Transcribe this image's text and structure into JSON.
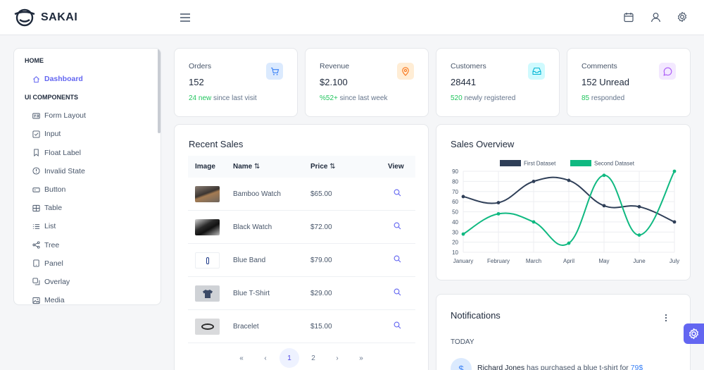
{
  "app": {
    "name": "SAKAI"
  },
  "topbar": {
    "icons": [
      "menu-icon",
      "calendar-icon",
      "user-icon",
      "cog-icon"
    ]
  },
  "sidebar": {
    "sections": [
      {
        "label": "HOME",
        "items": [
          {
            "label": "Dashboard",
            "icon": "home-icon",
            "active": true
          }
        ]
      },
      {
        "label": "UI COMPONENTS",
        "items": [
          {
            "label": "Form Layout",
            "icon": "id-card-icon"
          },
          {
            "label": "Input",
            "icon": "check-square-icon"
          },
          {
            "label": "Float Label",
            "icon": "bookmark-icon"
          },
          {
            "label": "Invalid State",
            "icon": "exclamation-circle-icon"
          },
          {
            "label": "Button",
            "icon": "mobile-icon"
          },
          {
            "label": "Table",
            "icon": "table-icon"
          },
          {
            "label": "List",
            "icon": "list-icon"
          },
          {
            "label": "Tree",
            "icon": "share-alt-icon"
          },
          {
            "label": "Panel",
            "icon": "tablet-icon"
          },
          {
            "label": "Overlay",
            "icon": "clone-icon"
          },
          {
            "label": "Media",
            "icon": "image-icon"
          }
        ]
      }
    ]
  },
  "stats": [
    {
      "label": "Orders",
      "value": "152",
      "highlight": "24 new",
      "rest": " since last visit",
      "icon": "shopping-cart-icon",
      "bg": "#dbeafe",
      "fg": "#3b82f6"
    },
    {
      "label": "Revenue",
      "value": "$2.100",
      "highlight": "%52+",
      "rest": " since last week",
      "icon": "map-marker-icon",
      "bg": "#ffedd5",
      "fg": "#f97316"
    },
    {
      "label": "Customers",
      "value": "28441",
      "highlight": "520",
      "rest": " newly registered",
      "icon": "inbox-icon",
      "bg": "#cffafe",
      "fg": "#06b6d4"
    },
    {
      "label": "Comments",
      "value": "152 Unread",
      "highlight": "85",
      "rest": " responded",
      "icon": "comment-icon",
      "bg": "#f3e8ff",
      "fg": "#a855f7"
    }
  ],
  "recent_sales": {
    "title": "Recent Sales",
    "columns": {
      "image": "Image",
      "name": "Name",
      "price": "Price",
      "view": "View"
    },
    "rows": [
      {
        "name": "Bamboo Watch",
        "price": "$65.00"
      },
      {
        "name": "Black Watch",
        "price": "$72.00"
      },
      {
        "name": "Blue Band",
        "price": "$79.00"
      },
      {
        "name": "Blue T-Shirt",
        "price": "$29.00"
      },
      {
        "name": "Bracelet",
        "price": "$15.00"
      }
    ],
    "pager": {
      "first": "«",
      "prev": "‹",
      "pages": [
        "1",
        "2"
      ],
      "current": "1",
      "next": "›",
      "last": "»"
    }
  },
  "sales_overview": {
    "title": "Sales Overview"
  },
  "chart_data": {
    "type": "line",
    "x": [
      "January",
      "February",
      "March",
      "April",
      "May",
      "June",
      "July"
    ],
    "series": [
      {
        "name": "First Dataset",
        "values": [
          65,
          59,
          80,
          81,
          56,
          55,
          40
        ],
        "color": "#2f3f58"
      },
      {
        "name": "Second Dataset",
        "values": [
          28,
          48,
          40,
          19,
          86,
          27,
          90
        ],
        "color": "#10b981"
      }
    ],
    "yticks": [
      10,
      20,
      30,
      40,
      50,
      60,
      70,
      80,
      90
    ],
    "ylim": [
      10,
      90
    ],
    "grid": true,
    "legend": "top"
  },
  "notifications": {
    "title": "Notifications",
    "menu_icon": "ellipsis-v-icon",
    "group": "TODAY",
    "items": [
      {
        "icon": "dollar-icon",
        "name": "Richard Jones",
        "text": " has purchased a blue t-shirt for ",
        "amount": "79$"
      }
    ]
  }
}
